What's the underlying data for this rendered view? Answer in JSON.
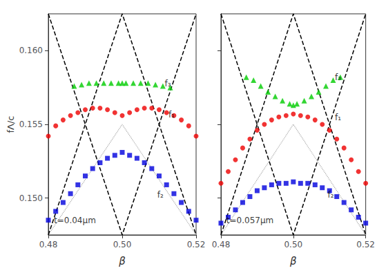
{
  "chart_data": [
    {
      "type": "scatter",
      "xlabel": "β",
      "ylabel": "fΛ/c",
      "xlim": [
        0.48,
        0.52
      ],
      "xticks": [
        0.48,
        {
          "value": 0.5,
          "label": "0.50"
        },
        0.52
      ],
      "ylim": [
        0.1475,
        0.1625
      ],
      "yticks": [
        {
          "value": 0.15,
          "label": "0.150"
        },
        0.155,
        {
          "value": 0.16,
          "label": "0.160"
        }
      ],
      "grid": false,
      "series": [
        {
          "type": "line",
          "color": "#aaaaaa",
          "line_style": "dotted",
          "x": [
            0.48,
            0.5,
            0.52
          ],
          "values": [
            0.1475,
            0.155,
            0.1475
          ]
        },
        {
          "type": "line",
          "color": "#000000",
          "line_style": "dashed",
          "x": [
            0.48,
            0.5,
            0.52
          ],
          "values": [
            0.1475,
            0.1625,
            0.1475
          ]
        },
        {
          "type": "line",
          "color": "#000000",
          "line_style": "dashed",
          "x": [
            0.48,
            0.5,
            0.52
          ],
          "values": [
            0.1625,
            0.1475,
            0.1625
          ]
        },
        {
          "type": "scatter",
          "color": "#0000dd",
          "marker": "square",
          "x": [
            0.48,
            0.482,
            0.484,
            0.486,
            0.488,
            0.49,
            0.492,
            0.494,
            0.496,
            0.498,
            0.5,
            0.502,
            0.504,
            0.506,
            0.508,
            0.51,
            0.512,
            0.514,
            0.516,
            0.518,
            0.52
          ],
          "values": [
            0.1485,
            0.1491,
            0.1497,
            0.1503,
            0.1509,
            0.1515,
            0.152,
            0.1524,
            0.1527,
            0.1529,
            0.1531,
            0.1529,
            0.1527,
            0.1524,
            0.152,
            0.1515,
            0.1509,
            0.1503,
            0.1497,
            0.1491,
            0.1485
          ]
        },
        {
          "type": "scatter",
          "color": "#ee0000",
          "marker": "circle",
          "x": [
            0.48,
            0.482,
            0.484,
            0.486,
            0.488,
            0.49,
            0.492,
            0.494,
            0.496,
            0.498,
            0.5,
            0.502,
            0.504,
            0.506,
            0.508,
            0.51,
            0.512,
            0.514,
            0.516,
            0.518,
            0.52
          ],
          "values": [
            0.1542,
            0.1549,
            0.1553,
            0.1556,
            0.1558,
            0.156,
            0.1561,
            0.1561,
            0.156,
            0.1558,
            0.1556,
            0.1558,
            0.156,
            0.1561,
            0.1561,
            0.156,
            0.1558,
            0.1556,
            0.1553,
            0.1549,
            0.1542
          ]
        },
        {
          "type": "scatter",
          "color": "#00cc00",
          "marker": "triangle",
          "x": [
            0.487,
            0.489,
            0.491,
            0.493,
            0.495,
            0.497,
            0.499,
            0.5,
            0.501,
            0.503,
            0.505,
            0.507,
            0.509,
            0.511,
            0.513
          ],
          "values": [
            0.1576,
            0.1577,
            0.1578,
            0.1578,
            0.1578,
            0.1578,
            0.1578,
            0.1578,
            0.1578,
            0.1578,
            0.1578,
            0.1578,
            0.1577,
            0.1576,
            0.1575
          ]
        }
      ],
      "annotations": [
        {
          "text": "f₃",
          "x": 0.5115,
          "y": 0.15775
        },
        {
          "text": "f₁",
          "x": 0.5125,
          "y": 0.15565
        },
        {
          "text": "f₂",
          "x": 0.5095,
          "y": 0.1502
        },
        {
          "text": "t=0.04μm",
          "x": 0.4815,
          "y": 0.1485
        }
      ]
    },
    {
      "type": "scatter",
      "xlabel": "β",
      "xlim": [
        0.48,
        0.52
      ],
      "xticks": [
        0.48,
        {
          "value": 0.5,
          "label": "0.50"
        },
        0.52
      ],
      "ylim": [
        0.1475,
        0.1625
      ],
      "yticks": [
        0.15,
        0.155,
        0.16
      ],
      "tick_labels": "x",
      "grid": false,
      "series": [
        {
          "type": "line",
          "color": "#aaaaaa",
          "line_style": "dotted",
          "x": [
            0.48,
            0.5,
            0.52
          ],
          "values": [
            0.1475,
            0.155,
            0.1475
          ]
        },
        {
          "type": "line",
          "color": "#000000",
          "line_style": "dashed",
          "x": [
            0.48,
            0.5,
            0.52
          ],
          "values": [
            0.1475,
            0.1625,
            0.1475
          ]
        },
        {
          "type": "line",
          "color": "#000000",
          "line_style": "dashed",
          "x": [
            0.48,
            0.5,
            0.52
          ],
          "values": [
            0.1625,
            0.1475,
            0.1625
          ]
        },
        {
          "type": "scatter",
          "color": "#0000dd",
          "marker": "square",
          "x": [
            0.48,
            0.482,
            0.484,
            0.486,
            0.488,
            0.49,
            0.492,
            0.494,
            0.496,
            0.498,
            0.5,
            0.502,
            0.504,
            0.506,
            0.508,
            0.51,
            0.512,
            0.514,
            0.516,
            0.518,
            0.52
          ],
          "values": [
            0.1483,
            0.1487,
            0.1492,
            0.1497,
            0.1501,
            0.1505,
            0.1507,
            0.1509,
            0.151,
            0.151,
            0.1511,
            0.151,
            0.151,
            0.1509,
            0.1507,
            0.1505,
            0.1501,
            0.1497,
            0.1492,
            0.1487,
            0.1483
          ]
        },
        {
          "type": "scatter",
          "color": "#ee0000",
          "marker": "circle",
          "x": [
            0.48,
            0.482,
            0.484,
            0.486,
            0.488,
            0.49,
            0.492,
            0.494,
            0.496,
            0.498,
            0.5,
            0.502,
            0.504,
            0.506,
            0.508,
            0.51,
            0.512,
            0.514,
            0.516,
            0.518,
            0.52
          ],
          "values": [
            0.151,
            0.1518,
            0.1526,
            0.1534,
            0.154,
            0.1546,
            0.155,
            0.1553,
            0.1555,
            0.1556,
            0.1557,
            0.1556,
            0.1555,
            0.1553,
            0.155,
            0.1546,
            0.154,
            0.1534,
            0.1526,
            0.1518,
            0.151
          ]
        },
        {
          "type": "scatter",
          "color": "#00cc00",
          "marker": "triangle",
          "x": [
            0.487,
            0.489,
            0.491,
            0.493,
            0.495,
            0.497,
            0.499,
            0.5,
            0.501,
            0.503,
            0.505,
            0.507,
            0.509,
            0.511,
            0.513
          ],
          "values": [
            0.1582,
            0.158,
            0.1576,
            0.1572,
            0.1569,
            0.1566,
            0.1564,
            0.1563,
            0.1564,
            0.1566,
            0.1569,
            0.1572,
            0.1576,
            0.158,
            0.1582
          ]
        }
      ],
      "annotations": [
        {
          "text": "f₃",
          "x": 0.5115,
          "y": 0.1582
        },
        {
          "text": "f₁",
          "x": 0.5115,
          "y": 0.15545
        },
        {
          "text": "f₂",
          "x": 0.5095,
          "y": 0.1502
        },
        {
          "text": "t=0.057μm",
          "x": 0.4815,
          "y": 0.1485
        }
      ]
    }
  ]
}
